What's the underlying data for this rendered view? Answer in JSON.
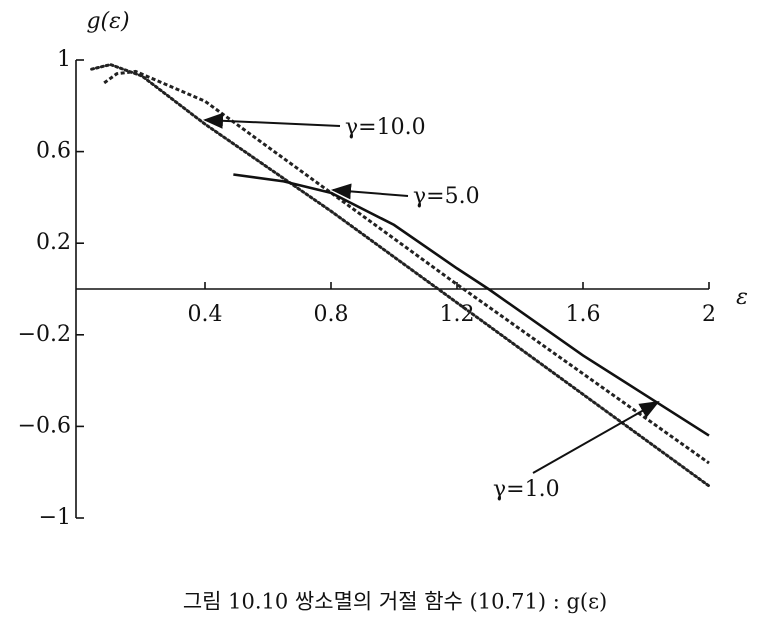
{
  "chart_data": {
    "type": "line",
    "title": "그림 10.10  쌍소멸의 거절 함수 (10.71) : g(ε)",
    "y_label": "g(ε)",
    "x_label": "ε",
    "xlim": [
      0,
      2
    ],
    "ylim": [
      -1,
      1
    ],
    "xticks": [
      0.4,
      0.8,
      1.2,
      1.6,
      2
    ],
    "yticks": [
      {
        "value": -1,
        "label": "−1"
      },
      {
        "value": -0.6,
        "label": "−0.6"
      },
      {
        "value": -0.2,
        "label": "−0.2"
      },
      0.2,
      0.6,
      1
    ],
    "series": [
      {
        "name": "γ=10.0",
        "color": "#222222",
        "dash": "dotted",
        "x": [
          0.04,
          0.1,
          0.2,
          0.4,
          0.8,
          1.2,
          1.6,
          2.0
        ],
        "values": [
          0.96,
          0.98,
          0.93,
          0.72,
          0.34,
          -0.06,
          -0.46,
          -0.86
        ]
      },
      {
        "name": "γ=5.0",
        "color": "#222222",
        "dash": "dashed",
        "x": [
          0.08,
          0.12,
          0.18,
          0.4,
          0.8,
          1.2,
          1.6,
          2.0
        ],
        "values": [
          0.9,
          0.94,
          0.95,
          0.82,
          0.42,
          0.02,
          -0.37,
          -0.76
        ]
      },
      {
        "name": "γ=1.0",
        "color": "#111111",
        "dash": "solid",
        "x": [
          0.49,
          0.65,
          0.8,
          1.0,
          1.2,
          1.3,
          1.6,
          2.0
        ],
        "values": [
          0.5,
          0.47,
          0.42,
          0.28,
          0.09,
          0.0,
          -0.29,
          -0.64
        ]
      }
    ]
  }
}
